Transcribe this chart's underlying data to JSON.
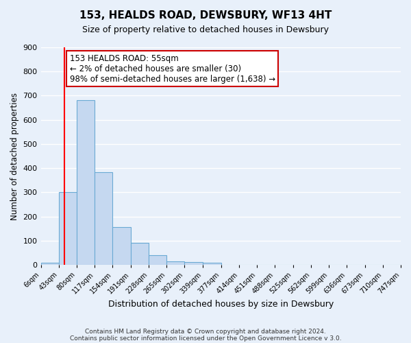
{
  "title": "153, HEALDS ROAD, DEWSBURY, WF13 4HT",
  "subtitle": "Size of property relative to detached houses in Dewsbury",
  "bar_values": [
    10,
    300,
    680,
    383,
    155,
    90,
    40,
    15,
    12,
    10,
    0,
    0,
    0,
    0,
    0,
    0,
    0,
    0,
    0,
    0
  ],
  "bin_edges": [
    6,
    43,
    80,
    117,
    154,
    191,
    228,
    265,
    302,
    339,
    377,
    414,
    451,
    488,
    525,
    562,
    599,
    636,
    673,
    710,
    747
  ],
  "tick_labels": [
    "6sqm",
    "43sqm",
    "80sqm",
    "117sqm",
    "154sqm",
    "191sqm",
    "228sqm",
    "265sqm",
    "302sqm",
    "339sqm",
    "377sqm",
    "414sqm",
    "451sqm",
    "488sqm",
    "525sqm",
    "562sqm",
    "599sqm",
    "636sqm",
    "673sqm",
    "710sqm",
    "747sqm"
  ],
  "ylabel": "Number of detached properties",
  "xlabel": "Distribution of detached houses by size in Dewsbury",
  "ylim": [
    0,
    900
  ],
  "yticks": [
    0,
    100,
    200,
    300,
    400,
    500,
    600,
    700,
    800,
    900
  ],
  "bar_color": "#c5d8f0",
  "bar_edgecolor": "#6aaad4",
  "redline_x": 55,
  "annotation_title": "153 HEALDS ROAD: 55sqm",
  "annotation_line1": "← 2% of detached houses are smaller (30)",
  "annotation_line2": "98% of semi-detached houses are larger (1,638) →",
  "annotation_box_facecolor": "#ffffff",
  "annotation_box_edgecolor": "#cc0000",
  "footer1": "Contains HM Land Registry data © Crown copyright and database right 2024.",
  "footer2": "Contains public sector information licensed under the Open Government Licence v 3.0.",
  "background_color": "#e8f0fa",
  "plot_background": "#e8f0fa",
  "grid_color": "#ffffff"
}
